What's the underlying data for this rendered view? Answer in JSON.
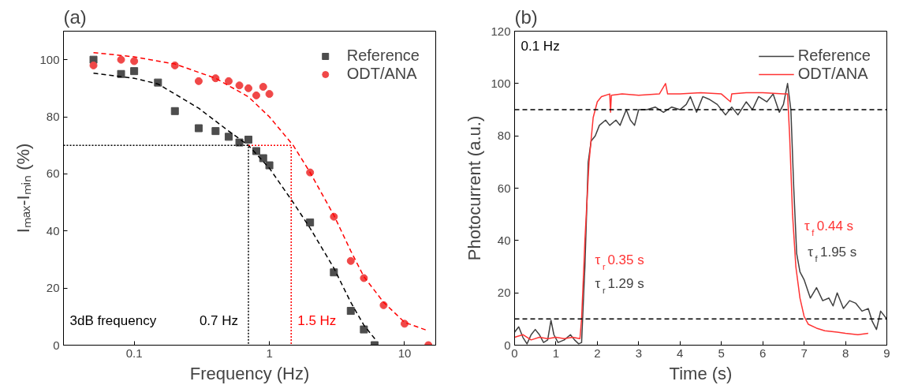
{
  "chart_data": [
    {
      "type": "scatter",
      "title": "(a)",
      "xlabel": "Frequency (Hz)",
      "ylabel": "Iₘₐₓ-Iₘᵢₙ (%)",
      "log": "x",
      "xlim": [
        0.03,
        17
      ],
      "xticks": [
        0.1,
        1,
        10
      ],
      "ylim": [
        0,
        110
      ],
      "yticks": [
        0,
        20,
        40,
        60,
        80,
        100
      ],
      "legend": "top right",
      "series": [
        {
          "name": "Reference",
          "type": "scatter",
          "marker": "square",
          "color": "#4d4d4d",
          "x": [
            0.05,
            0.08,
            0.1,
            0.15,
            0.2,
            0.3,
            0.4,
            0.5,
            0.6,
            0.7,
            0.8,
            0.9,
            1,
            2,
            3,
            4,
            5,
            6
          ],
          "values": [
            100,
            95,
            96,
            92,
            82,
            76,
            75,
            73,
            71,
            72,
            68,
            65.5,
            63,
            43,
            25.5,
            12,
            5.5,
            0
          ]
        },
        {
          "name": "ODT/ANA",
          "type": "scatter",
          "marker": "circle",
          "color": "#f04848",
          "x": [
            0.05,
            0.08,
            0.1,
            0.2,
            0.3,
            0.4,
            0.5,
            0.6,
            0.7,
            0.8,
            0.9,
            1,
            2,
            3,
            4,
            5,
            7,
            10,
            15
          ],
          "values": [
            98,
            100,
            99.5,
            98,
            92.5,
            93.5,
            92.5,
            91,
            90,
            87.5,
            90.5,
            88,
            60.5,
            45,
            29.5,
            23.5,
            14,
            7.5,
            0
          ]
        },
        {
          "type": "line",
          "line_style": "dashed",
          "color": "#000000",
          "x": [
            0.05,
            0.1,
            0.15,
            0.2,
            0.3,
            0.5,
            0.7,
            1,
            1.5,
            2,
            3,
            4,
            5,
            6.2
          ],
          "values": [
            95.3,
            93.5,
            91.5,
            88,
            83,
            75,
            70,
            62,
            50,
            41,
            27,
            15,
            7,
            1.5
          ]
        },
        {
          "type": "line",
          "line_style": "dashed",
          "color": "#ff0000",
          "x": [
            0.05,
            0.1,
            0.2,
            0.4,
            0.7,
            1,
            1.5,
            2,
            3,
            4,
            5,
            7,
            10,
            15
          ],
          "values": [
            102.5,
            101,
            98.5,
            93.5,
            87,
            80,
            70,
            60.5,
            45.5,
            33,
            24,
            15,
            8,
            5
          ]
        },
        {
          "type": "line",
          "line_style": "dotted",
          "color": "#000000",
          "x": [
            0.03,
            0.7,
            0.7
          ],
          "values": [
            70,
            70,
            0
          ]
        },
        {
          "type": "line",
          "line_style": "dotted",
          "color": "#ff0000",
          "x": [
            0.7,
            1.45,
            1.45
          ],
          "values": [
            70,
            70,
            0
          ]
        }
      ],
      "annotations": [
        "3dB frequency",
        {
          "text": "0.7 Hz",
          "x": 0.7,
          "y": 0
        },
        {
          "text": "1.5 Hz",
          "x": 1.45,
          "y": 0
        }
      ]
    },
    {
      "type": "line",
      "title": "(b)",
      "xlabel": "Time (s)",
      "ylabel": "Photocurrent (a.u.)",
      "xlim": [
        0,
        9
      ],
      "xticks": [
        0,
        1,
        2,
        3,
        4,
        5,
        6,
        7,
        8,
        9
      ],
      "ylim": [
        0,
        120
      ],
      "yticks": [
        0,
        20,
        40,
        60,
        80,
        100,
        120
      ],
      "legend": "top right",
      "series": [
        {
          "name": "Reference",
          "color": "#404040",
          "x": [
            0,
            0.1,
            0.2,
            0.3,
            0.4,
            0.5,
            0.6,
            0.7,
            0.8,
            0.88,
            0.95,
            1.05,
            1.2,
            1.35,
            1.45,
            1.55,
            1.62,
            1.68,
            1.7,
            1.78,
            1.85,
            1.95,
            2.05,
            2.2,
            2.3,
            2.45,
            2.55,
            2.7,
            2.8,
            2.9,
            3.0,
            3.2,
            3.4,
            3.6,
            3.8,
            4.0,
            4.15,
            4.25,
            4.4,
            4.55,
            4.7,
            4.9,
            5.1,
            5.25,
            5.4,
            5.6,
            5.75,
            5.9,
            6.1,
            6.25,
            6.4,
            6.5,
            6.6,
            6.68,
            6.75,
            6.82,
            6.9,
            7.0,
            7.15,
            7.3,
            7.45,
            7.6,
            7.7,
            7.8,
            7.95,
            8.1,
            8.25,
            8.4,
            8.55,
            8.65,
            8.75,
            8.85,
            9.0
          ],
          "values": [
            5,
            7,
            3,
            0.5,
            4,
            6,
            4,
            1,
            2,
            9.5,
            4,
            1,
            2,
            4,
            2,
            0.5,
            1,
            23,
            30,
            70,
            78,
            80,
            84,
            86,
            84,
            86,
            84,
            90,
            86,
            84,
            90,
            90,
            91,
            89,
            91,
            90,
            92,
            95,
            89,
            95,
            94,
            92,
            88,
            91,
            88,
            93,
            90,
            95,
            93,
            96,
            89,
            92,
            100,
            90,
            60,
            35,
            28,
            25,
            18,
            22,
            17,
            18,
            15,
            20,
            14,
            17,
            16,
            13,
            14,
            9,
            6,
            13,
            10
          ]
        },
        {
          "name": "ODT/ANA",
          "color": "#ff3333",
          "x": [
            0,
            0.2,
            0.4,
            0.6,
            0.8,
            1.0,
            1.2,
            1.4,
            1.58,
            1.62,
            1.68,
            1.7,
            1.8,
            1.9,
            2.0,
            2.1,
            2.3,
            2.32,
            2.34,
            2.6,
            3.0,
            3.5,
            3.65,
            3.7,
            4.0,
            4.5,
            5.0,
            5.22,
            5.25,
            5.6,
            6.0,
            6.5,
            6.6,
            6.65,
            6.72,
            6.74,
            6.8,
            6.9,
            7.0,
            7.1,
            7.3,
            7.5,
            7.8,
            8.0,
            8.3,
            8.55
          ],
          "values": [
            3,
            4,
            2,
            3,
            2.5,
            3,
            2.5,
            3,
            2.5,
            10,
            32,
            40,
            70,
            87,
            93,
            95,
            96,
            89,
            95.5,
            96,
            95.5,
            96,
            100,
            96,
            96,
            96.5,
            96,
            93,
            96,
            96.5,
            96.5,
            96,
            96,
            80,
            50,
            45,
            30,
            18,
            11,
            8,
            6.5,
            5.5,
            5,
            4.5,
            4,
            4.5
          ]
        }
      ],
      "ref_lines": [
        {
          "axis": "y",
          "value": 90,
          "color": "#000000",
          "line_style": "dashed"
        },
        {
          "axis": "y",
          "value": 10,
          "color": "#000000",
          "line_style": "dashed"
        }
      ],
      "annotations": [
        "0.1 Hz",
        {
          "text": "τ$_{r}$ 0.35 s",
          "x": 1.68,
          "y": 32
        },
        {
          "text": "τ$_{r}$ 1.29 s",
          "x": 1.68,
          "y": 23
        },
        {
          "text": "τ$_{f}$ 0.44 s",
          "x": 6.74,
          "y": 45
        },
        {
          "text": "τ$_{f}$ 1.95 s",
          "x": 6.82,
          "y": 35
        }
      ]
    }
  ]
}
